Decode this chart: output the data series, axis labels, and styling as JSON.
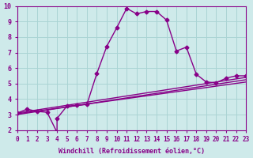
{
  "title": "",
  "xlabel": "Windchill (Refroidissement éolien,°C)",
  "ylabel": "",
  "xlim": [
    0,
    23
  ],
  "ylim": [
    2,
    10
  ],
  "xticks": [
    0,
    1,
    2,
    3,
    4,
    5,
    6,
    7,
    8,
    9,
    10,
    11,
    12,
    13,
    14,
    15,
    16,
    17,
    18,
    19,
    20,
    21,
    22,
    23
  ],
  "yticks": [
    2,
    3,
    4,
    5,
    6,
    7,
    8,
    9,
    10
  ],
  "background_color": "#ceeaea",
  "grid_color": "#aad4d4",
  "line_color": "#880088",
  "series1_x": [
    0,
    1,
    2,
    3,
    4,
    4,
    5,
    6,
    7,
    8,
    9,
    10,
    11,
    12,
    13,
    14,
    15,
    16,
    17,
    18,
    19,
    20,
    21,
    22,
    23
  ],
  "series1_y": [
    3.1,
    3.35,
    3.2,
    3.15,
    1.85,
    2.75,
    3.55,
    3.6,
    3.65,
    5.65,
    7.4,
    8.6,
    9.85,
    9.5,
    9.65,
    9.65,
    9.1,
    7.1,
    7.35,
    5.6,
    5.1,
    5.05,
    5.35,
    5.5,
    5.5
  ],
  "series2_x": [
    0,
    23
  ],
  "series2_y": [
    3.1,
    5.4
  ],
  "series3_x": [
    0,
    23
  ],
  "series3_y": [
    3.05,
    5.1
  ],
  "series4_x": [
    0,
    23
  ],
  "series4_y": [
    3.0,
    5.25
  ],
  "markersize": 2.5,
  "linewidth": 1.0
}
